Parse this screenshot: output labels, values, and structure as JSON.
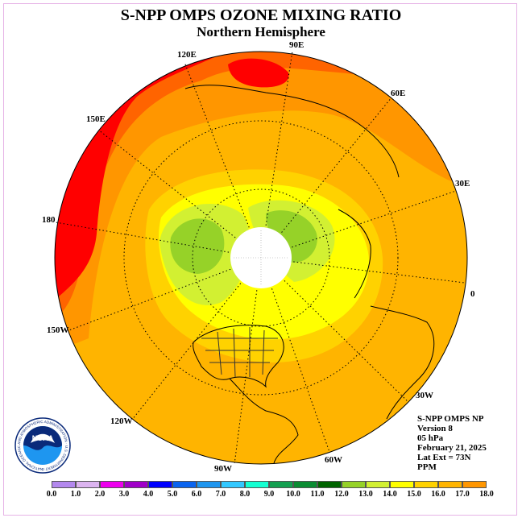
{
  "title": "S-NPP OMPS OZONE MIXING RATIO",
  "subtitle": "Northern Hemisphere",
  "longitude_labels": [
    {
      "text": "90E"
    },
    {
      "text": "120E"
    },
    {
      "text": "60E"
    },
    {
      "text": "150E"
    },
    {
      "text": "30E"
    },
    {
      "text": "180"
    },
    {
      "text": "0"
    },
    {
      "text": "150W"
    },
    {
      "text": "30W"
    },
    {
      "text": "120W"
    },
    {
      "text": "60W"
    },
    {
      "text": "90W"
    }
  ],
  "info": {
    "line1": "S-NPP OMPS NP",
    "line2": "Version 8",
    "line3": "05 hPa",
    "line4": "February 21, 2025",
    "line5": "Lat Ext = 73N",
    "line6": "PPM"
  },
  "colorbar": {
    "colors": [
      "#b388ee",
      "#dcb4f0",
      "#ee00ee",
      "#a000c8",
      "#0000ff",
      "#0a64f0",
      "#1e96f0",
      "#32c8ff",
      "#14ffd2",
      "#14a050",
      "#0a8c32",
      "#006400",
      "#96d228",
      "#d2f032",
      "#ffff00",
      "#ffd200",
      "#ffb400",
      "#ff9600",
      "#ff6400",
      "#ff0000",
      "#8c5030"
    ],
    "ticks": [
      "0.0",
      "1.0",
      "2.0",
      "3.0",
      "4.0",
      "5.0",
      "6.0",
      "7.0",
      "8.0",
      "9.0",
      "10.0",
      "11.0",
      "12.0",
      "13.0",
      "14.0",
      "15.0",
      "16.0",
      "17.0",
      "18.0"
    ]
  },
  "logo": {
    "text": "NOAA",
    "ring_text": "NATIONAL OCEANIC AND ATMOSPHERIC ADMINISTRATION · U.S. DEPARTMENT OF COMMERCE"
  }
}
